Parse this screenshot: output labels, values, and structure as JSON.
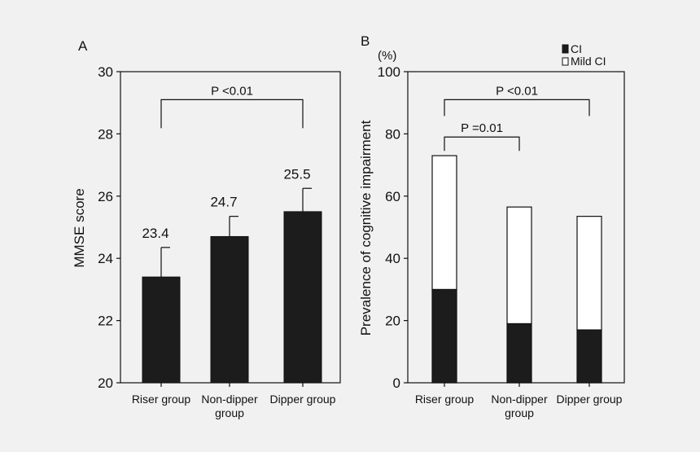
{
  "chart_data": [
    {
      "panel": "A",
      "type": "bar",
      "title": "",
      "xlabel": "",
      "ylabel": "MMSE score",
      "ylim": [
        20,
        30
      ],
      "yticks": [
        20,
        22,
        24,
        26,
        28,
        30
      ],
      "categories": [
        "Riser group",
        "Non-dipper group",
        "Dipper group"
      ],
      "category_lines": [
        [
          "Riser group"
        ],
        [
          "Non-dipper",
          "group"
        ],
        [
          "Dipper group"
        ]
      ],
      "values": [
        23.4,
        24.7,
        25.5
      ],
      "value_labels": [
        "23.4",
        "24.7",
        "25.5"
      ],
      "error_upper": [
        24.35,
        25.35,
        26.25
      ],
      "bar_color": "#1c1c1c",
      "annotations": [
        {
          "text": "P <0.01",
          "from_category": 0,
          "to_category": 2,
          "at_y": 29.1
        }
      ]
    },
    {
      "panel": "B",
      "type": "bar",
      "stacked": true,
      "title": "",
      "xlabel": "",
      "ylabel": "Prevalence of cognitive impairment",
      "yunit": "(%)",
      "ylim": [
        0,
        100
      ],
      "yticks": [
        0,
        20,
        40,
        60,
        80,
        100
      ],
      "categories": [
        "Riser group",
        "Non-dipper group",
        "Dipper group"
      ],
      "category_lines": [
        [
          "Riser group"
        ],
        [
          "Non-dipper",
          "group"
        ],
        [
          "Dipper group"
        ]
      ],
      "series": [
        {
          "name": "CI",
          "values": [
            30,
            19,
            17
          ],
          "color": "#1c1c1c"
        },
        {
          "name": "Mild CI",
          "values": [
            43,
            37.5,
            36.5
          ],
          "color": "#ffffff"
        }
      ],
      "legend": {
        "position": "top-right",
        "entries": [
          "CI",
          "Mild CI"
        ]
      },
      "annotations": [
        {
          "text": "P <0.01",
          "from_category": 0,
          "to_category": 2,
          "at_y": 91
        },
        {
          "text": "P =0.01",
          "from_category": 0,
          "to_category": 1,
          "at_y": 79
        }
      ]
    }
  ]
}
